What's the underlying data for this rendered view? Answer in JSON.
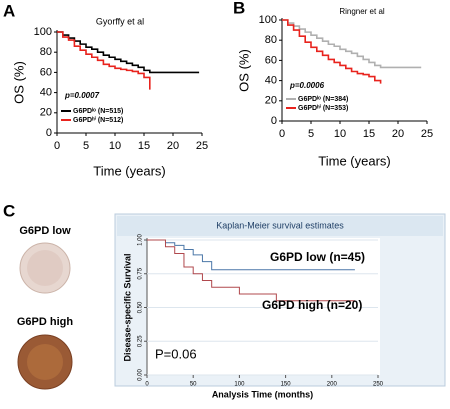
{
  "panel_labels": [
    "A",
    "B",
    "C"
  ],
  "images": [
    "G6PD low",
    "G6PD high"
  ],
  "chart_data": [
    {
      "type": "line",
      "title": "Gyorffy  et al",
      "x_label": "Time (years)",
      "y_label": "OS (%)",
      "pvalue": "p=0.0007",
      "x": [
        0,
        1,
        2,
        3,
        4,
        5,
        6,
        7,
        8,
        9,
        10,
        11,
        12,
        13,
        14,
        15,
        16,
        17,
        18,
        20,
        24.5
      ],
      "series": [
        {
          "name": "G6PDˡᵒ (N=515)",
          "color": "#000000",
          "values": [
            100,
            97,
            94,
            91,
            88,
            85,
            83,
            80,
            77,
            75,
            73,
            71,
            69,
            67,
            65,
            62,
            60,
            60,
            60,
            60,
            60
          ]
        },
        {
          "name": "G6PDʰⁱ (N=512)",
          "color": "#e8231d",
          "values": [
            100,
            95,
            92,
            86,
            82,
            78,
            75,
            72,
            68,
            66,
            64,
            63,
            62,
            61,
            59,
            55,
            43,
            null,
            null,
            null,
            null
          ]
        }
      ],
      "xlim": [
        0,
        25
      ],
      "ylim": [
        0,
        100
      ],
      "xticks": [
        0,
        5,
        10,
        15,
        20,
        25
      ],
      "yticks": [
        0,
        20,
        40,
        60,
        80,
        100
      ],
      "legend": "lower left",
      "grid": false
    },
    {
      "type": "line",
      "title": "Ringner et al",
      "x_label": "Time (years)",
      "y_label": "OS (%)",
      "pvalue": "p=0.0006",
      "x": [
        0,
        1,
        2,
        3,
        4,
        5,
        6,
        7,
        8,
        9,
        10,
        11,
        12,
        13,
        14,
        15,
        16,
        17,
        18,
        20,
        24
      ],
      "series": [
        {
          "name": "G6PDˡᵒ (N=384)",
          "color": "#b0b0b0",
          "values": [
            100,
            97,
            94,
            91,
            88,
            85,
            82,
            79,
            76,
            74,
            71,
            69,
            67,
            64,
            61,
            58,
            55,
            53,
            53,
            53,
            53
          ]
        },
        {
          "name": "G6PDʰⁱ (N=353)",
          "color": "#e8231d",
          "values": [
            100,
            95,
            90,
            84,
            78,
            73,
            69,
            65,
            61,
            58,
            55,
            52,
            49,
            47,
            46,
            44,
            40,
            37,
            null,
            null,
            null
          ]
        }
      ],
      "xlim": [
        0,
        25
      ],
      "ylim": [
        0,
        100
      ],
      "xticks": [
        0,
        5,
        10,
        15,
        20,
        25
      ],
      "yticks": [
        0,
        20,
        40,
        60,
        80,
        100
      ],
      "legend": "lower left",
      "grid": false
    },
    {
      "type": "line",
      "title": "Kaplan-Meier survival estimates",
      "x_label": "Analysis Time (months)",
      "y_label": "Disease-specific Survival",
      "pvalue": "P=0.06",
      "x": [
        0,
        20,
        30,
        40,
        50,
        60,
        70,
        80,
        100,
        140,
        225
      ],
      "series": [
        {
          "name": "G6PD low (n=45)",
          "color": "#4b77a8",
          "values": [
            1,
            0.98,
            0.96,
            0.93,
            0.89,
            0.84,
            0.78,
            0.78,
            0.78,
            0.78,
            0.78
          ]
        },
        {
          "name": "G6PD high (n=20)",
          "color": "#b0484d",
          "values": [
            1,
            0.95,
            0.9,
            0.8,
            0.75,
            0.7,
            0.65,
            0.65,
            0.6,
            0.55,
            0.55
          ]
        }
      ],
      "xlim": [
        0,
        250
      ],
      "ylim": [
        0,
        1
      ],
      "xticks": [
        0,
        50,
        100,
        150,
        200,
        250
      ],
      "yticks": [
        {
          "value": 0,
          "label": "0.00"
        },
        {
          "value": 0.25,
          "label": "0.25"
        },
        {
          "value": 0.5,
          "label": "0.50"
        },
        {
          "value": 0.75,
          "label": "0.75"
        },
        {
          "value": 1,
          "label": "1.00"
        }
      ],
      "legend": "annotations",
      "grid": true
    }
  ]
}
